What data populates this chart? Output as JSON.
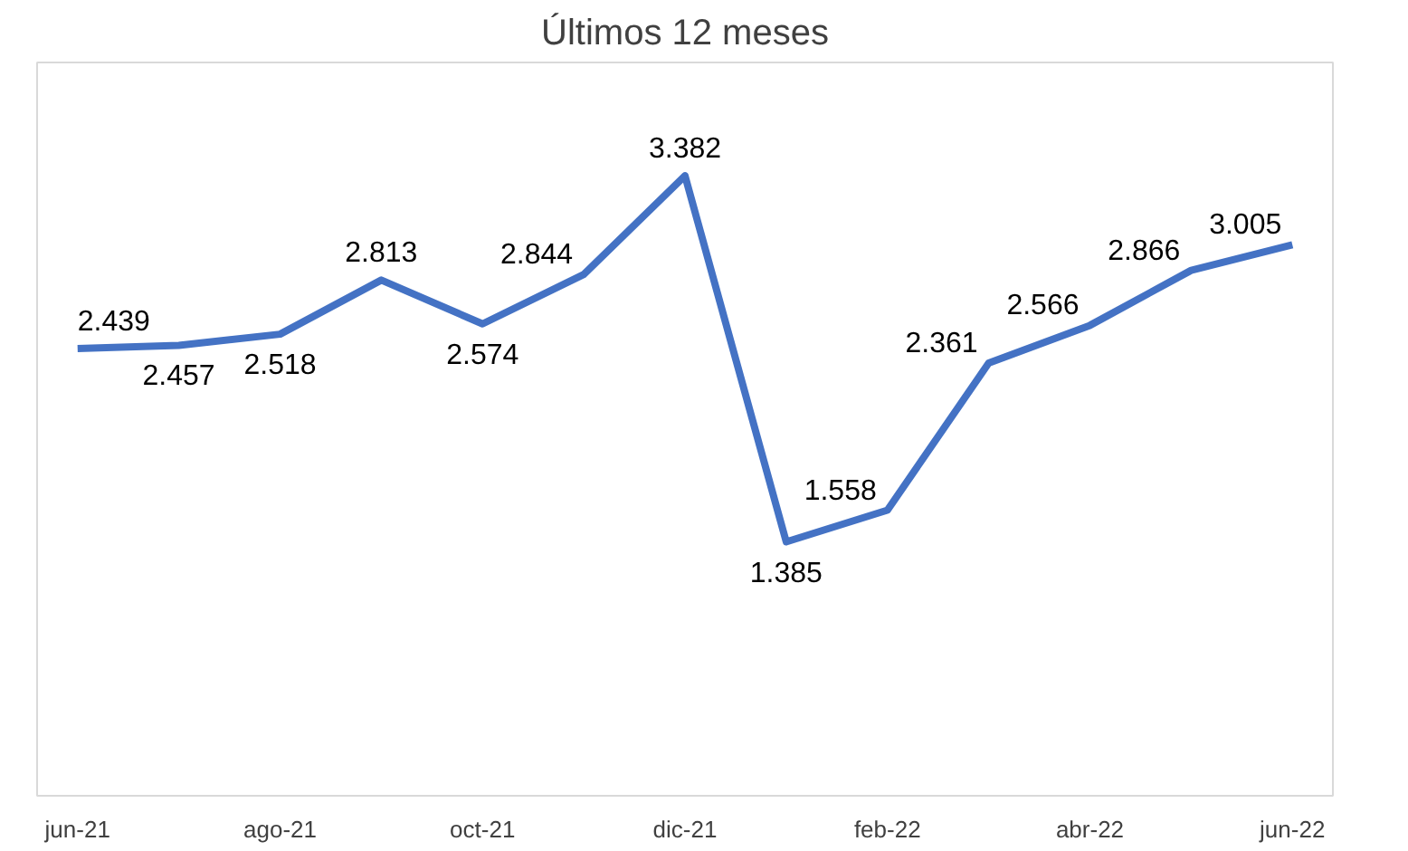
{
  "chart_data": {
    "type": "line",
    "title": "Últimos 12 meses",
    "categories": [
      "jun-21",
      null,
      "ago-21",
      null,
      "oct-21",
      null,
      "dic-21",
      null,
      "feb-22",
      null,
      "abr-22",
      null,
      "jun-22"
    ],
    "series": [
      {
        "color": "#4472c4",
        "values": [
          2.439,
          2.457,
          2.518,
          2.813,
          2.574,
          2.844,
          3.382,
          1.385,
          1.558,
          2.361,
          2.566,
          2.866,
          3.005
        ]
      }
    ],
    "ylim": [
      0,
      4
    ],
    "data_labels": true,
    "grid": false,
    "marker": "none",
    "line_style": "solid"
  }
}
